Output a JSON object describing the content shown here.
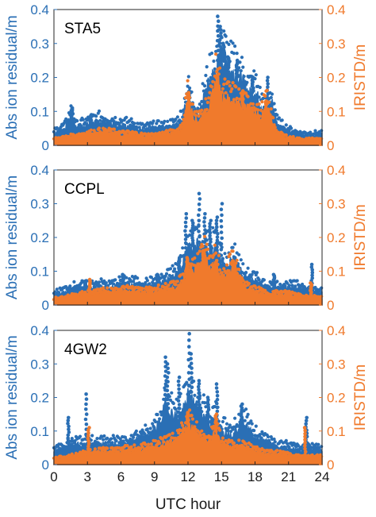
{
  "chart_data": [
    {
      "type": "scatter",
      "station_label": "STA5",
      "ylabel_left": "Abs ion residual/m",
      "ylabel_right": "IRISTD/m",
      "xlim": [
        0,
        24
      ],
      "ylim_left": [
        0,
        0.4
      ],
      "ylim_right": [
        0,
        0.4
      ],
      "yticks": [
        "0",
        "0.1",
        "0.2",
        "0.3",
        "0.4"
      ],
      "grid": false,
      "series": [
        {
          "color": "#2a6fb5",
          "profile": [
            [
              0,
              0.035
            ],
            [
              1,
              0.05
            ],
            [
              1.6,
              0.09
            ],
            [
              2,
              0.05
            ],
            [
              3,
              0.06
            ],
            [
              4,
              0.07
            ],
            [
              5,
              0.065
            ],
            [
              6,
              0.06
            ],
            [
              7,
              0.055
            ],
            [
              8,
              0.045
            ],
            [
              9,
              0.05
            ],
            [
              10,
              0.05
            ],
            [
              11,
              0.06
            ],
            [
              11.5,
              0.08
            ],
            [
              12,
              0.15
            ],
            [
              12.5,
              0.1
            ],
            [
              13,
              0.09
            ],
            [
              13.6,
              0.16
            ],
            [
              14,
              0.19
            ],
            [
              14.5,
              0.22
            ],
            [
              15,
              0.26
            ],
            [
              15.5,
              0.23
            ],
            [
              16,
              0.21
            ],
            [
              16.5,
              0.2
            ],
            [
              17,
              0.18
            ],
            [
              17.5,
              0.15
            ],
            [
              18,
              0.16
            ],
            [
              18.5,
              0.12
            ],
            [
              19,
              0.1
            ],
            [
              19.5,
              0.13
            ],
            [
              20,
              0.06
            ],
            [
              21,
              0.04
            ],
            [
              22,
              0.03
            ],
            [
              23,
              0.03
            ],
            [
              24,
              0.03
            ]
          ],
          "peaks": [
            [
              1.6,
              0.11
            ],
            [
              3.3,
              0.09
            ],
            [
              12.1,
              0.16
            ],
            [
              14.7,
              0.38
            ],
            [
              14.9,
              0.35
            ],
            [
              15.2,
              0.3
            ],
            [
              15.6,
              0.26
            ],
            [
              16.4,
              0.25
            ],
            [
              17.8,
              0.2
            ],
            [
              19.1,
              0.2
            ]
          ]
        },
        {
          "color": "#f07a2c",
          "profile": [
            [
              0,
              0.015
            ],
            [
              1,
              0.02
            ],
            [
              2,
              0.025
            ],
            [
              3,
              0.03
            ],
            [
              4,
              0.035
            ],
            [
              5,
              0.035
            ],
            [
              6,
              0.03
            ],
            [
              7,
              0.03
            ],
            [
              8,
              0.025
            ],
            [
              9,
              0.025
            ],
            [
              10,
              0.03
            ],
            [
              11,
              0.035
            ],
            [
              11.5,
              0.05
            ],
            [
              12,
              0.14
            ],
            [
              12.5,
              0.08
            ],
            [
              13,
              0.07
            ],
            [
              14,
              0.12
            ],
            [
              14.6,
              0.2
            ],
            [
              15,
              0.14
            ],
            [
              16,
              0.13
            ],
            [
              17,
              0.11
            ],
            [
              18,
              0.1
            ],
            [
              18.5,
              0.08
            ],
            [
              19,
              0.12
            ],
            [
              19.5,
              0.07
            ],
            [
              20,
              0.03
            ],
            [
              21,
              0.02
            ],
            [
              22,
              0.015
            ],
            [
              24,
              0.015
            ]
          ],
          "peaks": [
            [
              12,
              0.155
            ],
            [
              14.6,
              0.2
            ],
            [
              16.9,
              0.16
            ],
            [
              19,
              0.13
            ]
          ]
        }
      ]
    },
    {
      "type": "scatter",
      "station_label": "CCPL",
      "ylabel_left": "Abs ion residual/m",
      "ylabel_right": "IRISTD/m",
      "xlim": [
        0,
        24
      ],
      "ylim_left": [
        0,
        0.4
      ],
      "ylim_right": [
        0,
        0.4
      ],
      "yticks": [
        "0",
        "0.1",
        "0.2",
        "0.3",
        "0.4"
      ],
      "grid": false,
      "series": [
        {
          "color": "#2a6fb5",
          "profile": [
            [
              0,
              0.03
            ],
            [
              1,
              0.04
            ],
            [
              2,
              0.05
            ],
            [
              3,
              0.05
            ],
            [
              4,
              0.055
            ],
            [
              5,
              0.05
            ],
            [
              6,
              0.06
            ],
            [
              7,
              0.06
            ],
            [
              8,
              0.055
            ],
            [
              9,
              0.06
            ],
            [
              10,
              0.07
            ],
            [
              11,
              0.09
            ],
            [
              11.5,
              0.12
            ],
            [
              12,
              0.16
            ],
            [
              12.5,
              0.18
            ],
            [
              13,
              0.17
            ],
            [
              13.5,
              0.15
            ],
            [
              14,
              0.16
            ],
            [
              14.5,
              0.17
            ],
            [
              15,
              0.13
            ],
            [
              15.5,
              0.1
            ],
            [
              16,
              0.14
            ],
            [
              17,
              0.08
            ],
            [
              18,
              0.07
            ],
            [
              19,
              0.05
            ],
            [
              20,
              0.05
            ],
            [
              21,
              0.05
            ],
            [
              22,
              0.05
            ],
            [
              23,
              0.04
            ],
            [
              24,
              0.035
            ]
          ],
          "peaks": [
            [
              2.8,
              0.07
            ],
            [
              6.2,
              0.09
            ],
            [
              9.3,
              0.09
            ],
            [
              11.2,
              0.14
            ],
            [
              11.8,
              0.27
            ],
            [
              12.4,
              0.25
            ],
            [
              13,
              0.33
            ],
            [
              13.5,
              0.27
            ],
            [
              14,
              0.25
            ],
            [
              14.6,
              0.26
            ],
            [
              15,
              0.3
            ],
            [
              16.2,
              0.14
            ],
            [
              19.7,
              0.09
            ],
            [
              23.1,
              0.12
            ]
          ]
        },
        {
          "color": "#f07a2c",
          "profile": [
            [
              0,
              0.015
            ],
            [
              1,
              0.02
            ],
            [
              2,
              0.025
            ],
            [
              3,
              0.03
            ],
            [
              4,
              0.035
            ],
            [
              5,
              0.035
            ],
            [
              6,
              0.04
            ],
            [
              7,
              0.04
            ],
            [
              8,
              0.035
            ],
            [
              9,
              0.04
            ],
            [
              10,
              0.045
            ],
            [
              11,
              0.05
            ],
            [
              11.5,
              0.07
            ],
            [
              12,
              0.1
            ],
            [
              12.5,
              0.1
            ],
            [
              13,
              0.12
            ],
            [
              13.5,
              0.14
            ],
            [
              14,
              0.1
            ],
            [
              14.5,
              0.13
            ],
            [
              15,
              0.08
            ],
            [
              15.5,
              0.09
            ],
            [
              16,
              0.12
            ],
            [
              17,
              0.05
            ],
            [
              18,
              0.04
            ],
            [
              19,
              0.03
            ],
            [
              20,
              0.03
            ],
            [
              21,
              0.03
            ],
            [
              22,
              0.025
            ],
            [
              23,
              0.02
            ],
            [
              24,
              0.02
            ]
          ],
          "peaks": [
            [
              3.2,
              0.075
            ],
            [
              11.9,
              0.14
            ],
            [
              13.4,
              0.16
            ],
            [
              16,
              0.13
            ],
            [
              23,
              0.065
            ]
          ]
        }
      ]
    },
    {
      "type": "scatter",
      "station_label": "4GW2",
      "ylabel_left": "Abs ion residual/m",
      "ylabel_right": "IRISTD/m",
      "xlabel": "UTC hour",
      "xlim": [
        0,
        24
      ],
      "xticks": [
        "0",
        "3",
        "6",
        "9",
        "12",
        "15",
        "18",
        "21",
        "24"
      ],
      "ylim_left": [
        0,
        0.4
      ],
      "ylim_right": [
        0,
        0.4
      ],
      "yticks": [
        "0",
        "0.1",
        "0.2",
        "0.3",
        "0.4"
      ],
      "grid": false,
      "series": [
        {
          "color": "#2a6fb5",
          "profile": [
            [
              0,
              0.04
            ],
            [
              1,
              0.05
            ],
            [
              2,
              0.06
            ],
            [
              3,
              0.06
            ],
            [
              4,
              0.06
            ],
            [
              5,
              0.06
            ],
            [
              6,
              0.06
            ],
            [
              7,
              0.07
            ],
            [
              8,
              0.08
            ],
            [
              9,
              0.1
            ],
            [
              9.5,
              0.12
            ],
            [
              10,
              0.18
            ],
            [
              10.5,
              0.15
            ],
            [
              11,
              0.14
            ],
            [
              11.5,
              0.15
            ],
            [
              12,
              0.2
            ],
            [
              12.5,
              0.18
            ],
            [
              13,
              0.16
            ],
            [
              13.5,
              0.14
            ],
            [
              14,
              0.12
            ],
            [
              14.5,
              0.13
            ],
            [
              15,
              0.1
            ],
            [
              16,
              0.09
            ],
            [
              16.5,
              0.11
            ],
            [
              17,
              0.13
            ],
            [
              17.5,
              0.1
            ],
            [
              18,
              0.08
            ],
            [
              19,
              0.07
            ],
            [
              20,
              0.05
            ],
            [
              21,
              0.05
            ],
            [
              22,
              0.04
            ],
            [
              23,
              0.05
            ],
            [
              24,
              0.04
            ]
          ],
          "peaks": [
            [
              2.9,
              0.21
            ],
            [
              1.3,
              0.14
            ],
            [
              10,
              0.32
            ],
            [
              10.2,
              0.3
            ],
            [
              11.2,
              0.26
            ],
            [
              12.1,
              0.39
            ],
            [
              12.3,
              0.33
            ],
            [
              13,
              0.25
            ],
            [
              13.8,
              0.2
            ],
            [
              14.6,
              0.24
            ],
            [
              16.8,
              0.18
            ],
            [
              22.6,
              0.14
            ]
          ]
        },
        {
          "color": "#f07a2c",
          "profile": [
            [
              0,
              0.015
            ],
            [
              1,
              0.02
            ],
            [
              2,
              0.025
            ],
            [
              3,
              0.03
            ],
            [
              4,
              0.035
            ],
            [
              5,
              0.035
            ],
            [
              6,
              0.04
            ],
            [
              7,
              0.04
            ],
            [
              8,
              0.045
            ],
            [
              9,
              0.05
            ],
            [
              10,
              0.06
            ],
            [
              11,
              0.07
            ],
            [
              11.5,
              0.09
            ],
            [
              12,
              0.12
            ],
            [
              12.5,
              0.1
            ],
            [
              13,
              0.08
            ],
            [
              14,
              0.07
            ],
            [
              14.5,
              0.1
            ],
            [
              15,
              0.06
            ],
            [
              16,
              0.05
            ],
            [
              17,
              0.05
            ],
            [
              18,
              0.04
            ],
            [
              19,
              0.03
            ],
            [
              20,
              0.03
            ],
            [
              21,
              0.025
            ],
            [
              22,
              0.02
            ],
            [
              23,
              0.02
            ],
            [
              24,
              0.02
            ]
          ],
          "peaks": [
            [
              3.1,
              0.11
            ],
            [
              12,
              0.155
            ],
            [
              14.5,
              0.15
            ],
            [
              22.5,
              0.11
            ]
          ]
        }
      ]
    }
  ]
}
